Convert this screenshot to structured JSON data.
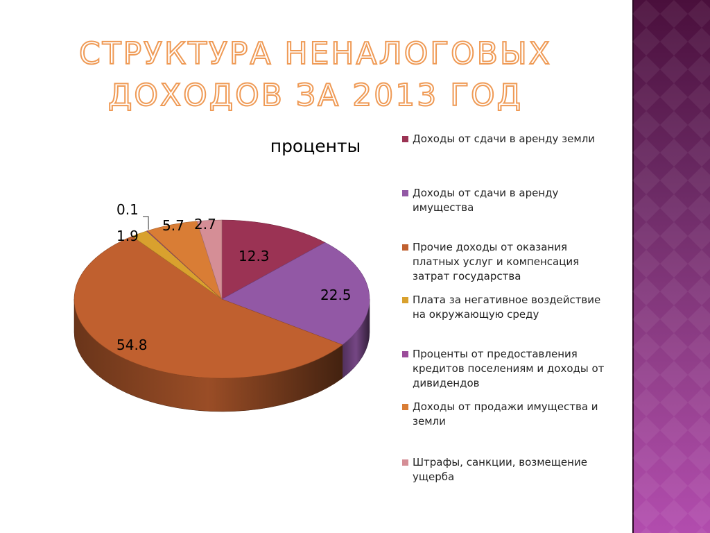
{
  "slide": {
    "title": "СТРУКТУРА НЕНАЛОГОВЫХ ДОХОДОВ ЗА 2013 ГОД"
  },
  "chart_data": {
    "type": "pie",
    "title": "проценты",
    "labels": [
      "Доходы от сдачи в аренду земли",
      "Доходы от сдачи в аренду имущества",
      "Прочие доходы от оказания платных услуг и компенсация затрат государства",
      "Плата за негативное воздействие на окружающую среду",
      "Проценты от предоставления кредитов поселениям и доходы от дивидендов",
      "Доходы от продажи имущества и земли",
      "Штрафы, санкции, возмещение ущерба"
    ],
    "values": [
      12.3,
      22.5,
      54.8,
      1.9,
      0.1,
      5.7,
      2.7
    ],
    "value_labels": [
      "12.3",
      "22.5",
      "54.8",
      "1.9",
      "0.1",
      "5.7",
      "2.7"
    ],
    "colors": [
      "#9b3354",
      "#9258a5",
      "#c0602f",
      "#d9a12e",
      "#9b4c9a",
      "#d97d35",
      "#d58e96"
    ],
    "legend_position": "right",
    "style": "3d"
  }
}
